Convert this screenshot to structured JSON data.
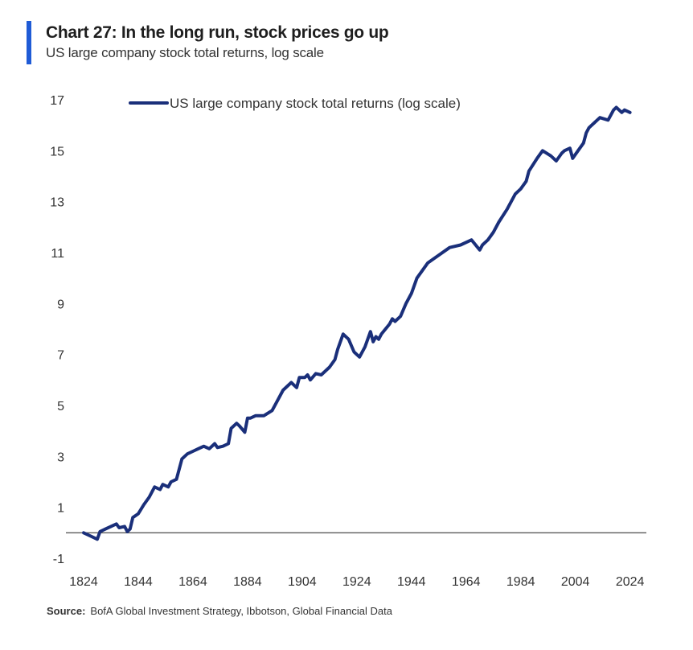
{
  "header": {
    "title": "Chart 27: In the long run, stock prices go up",
    "subtitle": "US large company stock total returns, log scale",
    "accent_color": "#1f5bd6"
  },
  "chart_data": {
    "type": "line",
    "title": "Chart 27: In the long run, stock prices go up",
    "subtitle": "US large company stock total returns, log scale",
    "xlabel": "",
    "ylabel": "",
    "xlim": [
      1824,
      2030
    ],
    "ylim": [
      -1,
      17
    ],
    "x_ticks": [
      "1824",
      "1844",
      "1864",
      "1884",
      "1904",
      "1924",
      "1944",
      "1964",
      "1984",
      "2004",
      "2024"
    ],
    "y_ticks": [
      "-1",
      "1",
      "3",
      "5",
      "7",
      "9",
      "11",
      "13",
      "15",
      "17"
    ],
    "grid": false,
    "zero_line": true,
    "legend": "top-left",
    "series": [
      {
        "name": "US large company stock total returns (log scale)",
        "color": "#1a2f7a",
        "x": [
          1824,
          1826,
          1828,
          1829,
          1830,
          1832,
          1834,
          1836,
          1837,
          1839,
          1840,
          1841,
          1842,
          1844,
          1846,
          1848,
          1850,
          1852,
          1853,
          1855,
          1856,
          1858,
          1860,
          1861,
          1862,
          1864,
          1866,
          1868,
          1870,
          1872,
          1873,
          1875,
          1877,
          1878,
          1880,
          1881,
          1883,
          1884,
          1885,
          1887,
          1890,
          1893,
          1895,
          1897,
          1900,
          1902,
          1903,
          1905,
          1906,
          1907,
          1909,
          1911,
          1914,
          1916,
          1917,
          1919,
          1921,
          1923,
          1925,
          1927,
          1928,
          1929,
          1930,
          1931,
          1932,
          1933,
          1936,
          1937,
          1938,
          1940,
          1942,
          1944,
          1946,
          1948,
          1950,
          1954,
          1958,
          1962,
          1966,
          1969,
          1970,
          1972,
          1974,
          1976,
          1979,
          1982,
          1984,
          1986,
          1987,
          1990,
          1992,
          1995,
          1997,
          1999,
          2000,
          2002,
          2003,
          2005,
          2007,
          2008,
          2009,
          2011,
          2013,
          2016,
          2018,
          2019,
          2021,
          2022,
          2024
        ],
        "values": [
          0.0,
          -0.1,
          -0.2,
          -0.25,
          0.05,
          0.15,
          0.25,
          0.35,
          0.2,
          0.25,
          0.05,
          0.15,
          0.6,
          0.75,
          1.1,
          1.4,
          1.8,
          1.7,
          1.9,
          1.8,
          2.0,
          2.1,
          2.9,
          3.0,
          3.1,
          3.2,
          3.3,
          3.4,
          3.3,
          3.5,
          3.35,
          3.4,
          3.5,
          4.1,
          4.3,
          4.2,
          3.95,
          4.5,
          4.5,
          4.6,
          4.6,
          4.8,
          5.2,
          5.6,
          5.9,
          5.7,
          6.1,
          6.1,
          6.2,
          6.0,
          6.25,
          6.2,
          6.5,
          6.8,
          7.2,
          7.8,
          7.6,
          7.1,
          6.9,
          7.3,
          7.6,
          7.9,
          7.5,
          7.7,
          7.6,
          7.8,
          8.2,
          8.4,
          8.3,
          8.5,
          9.0,
          9.4,
          10.0,
          10.3,
          10.6,
          10.9,
          11.2,
          11.3,
          11.5,
          11.1,
          11.3,
          11.5,
          11.8,
          12.2,
          12.7,
          13.3,
          13.5,
          13.8,
          14.2,
          14.7,
          15.0,
          14.8,
          14.6,
          14.9,
          15.0,
          15.1,
          14.7,
          15.0,
          15.3,
          15.7,
          15.9,
          16.1,
          16.3,
          16.2,
          16.6,
          16.7,
          16.5,
          16.6,
          16.5
        ]
      }
    ]
  },
  "footer": {
    "source_label": "Source:",
    "source_text": "BofA Global Investment Strategy, Ibbotson,  Global Financial Data"
  }
}
